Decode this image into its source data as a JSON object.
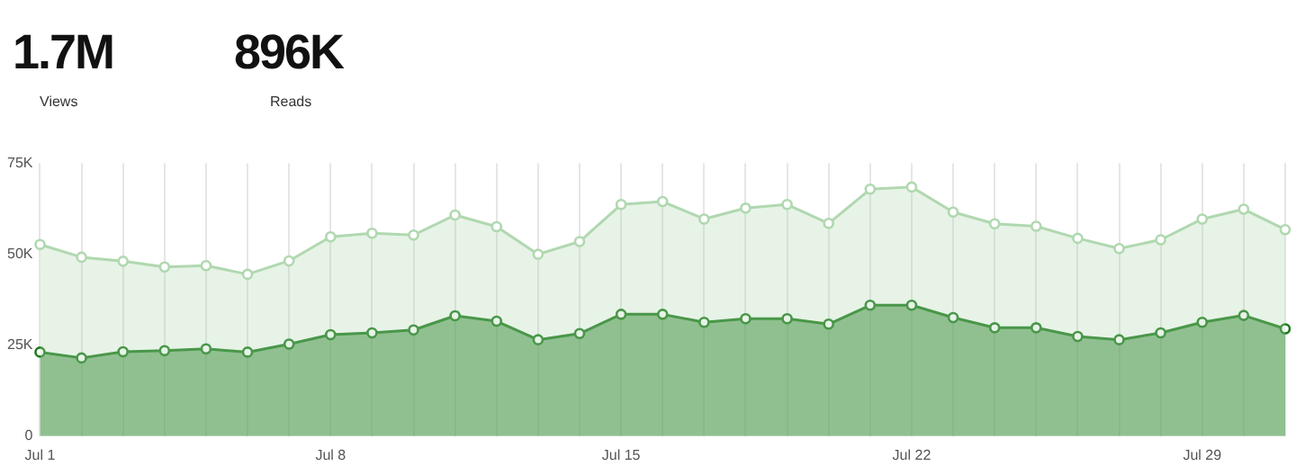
{
  "chart_data": {
    "type": "area",
    "annotations": [
      "1.7M",
      "Views",
      "896K",
      "Reads"
    ],
    "categories": [
      "Jul 1",
      null,
      null,
      null,
      null,
      null,
      null,
      "Jul 8",
      null,
      null,
      null,
      null,
      null,
      null,
      "Jul 15",
      null,
      null,
      null,
      null,
      null,
      null,
      "Jul 22",
      null,
      null,
      null,
      null,
      null,
      null,
      "Jul 29",
      null,
      null
    ],
    "series": [
      {
        "color": "#b0d8b0",
        "values": [
          52700,
          49200,
          48100,
          46500,
          46900,
          44500,
          48200,
          54800,
          55800,
          55300,
          60800,
          57600,
          50000,
          53500,
          63700,
          64500,
          59700,
          62700,
          63700,
          58500,
          67900,
          68500,
          61600,
          58400,
          57700,
          54400,
          51600,
          54000,
          59700,
          62400,
          56800
        ]
      },
      {
        "color": "#1e7b1e",
        "values": [
          23100,
          21500,
          23200,
          23500,
          24000,
          23100,
          25300,
          27900,
          28400,
          29200,
          33100,
          31600,
          26500,
          28200,
          33500,
          33500,
          31300,
          32300,
          32300,
          30800,
          36000,
          36000,
          32600,
          29800,
          29800,
          27400,
          26500,
          28400,
          31300,
          33200,
          29500
        ]
      }
    ],
    "ylim": [
      0,
      75000
    ],
    "yticks": [
      {
        "value": 0,
        "label": "0"
      },
      {
        "value": 25000,
        "label": "25K"
      },
      {
        "value": 50000,
        "label": "50K"
      },
      {
        "value": 75000,
        "label": "75K"
      }
    ],
    "grid": "x",
    "legend": false,
    "marker": "circle"
  }
}
